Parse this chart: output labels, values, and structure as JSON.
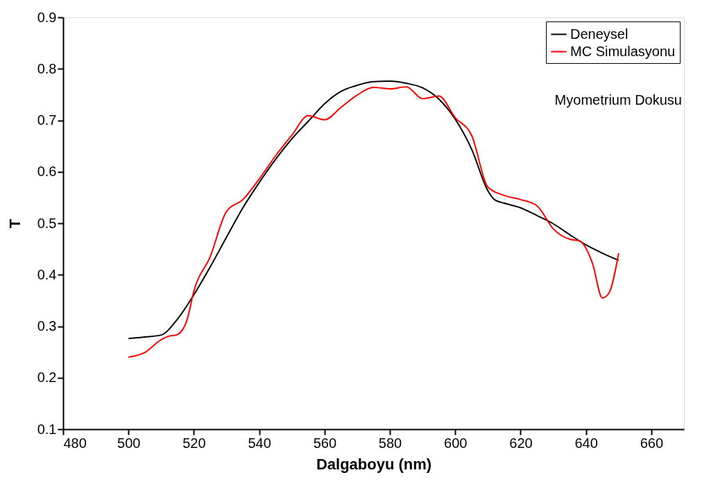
{
  "chart_data": {
    "type": "line",
    "xlabel": "Dalgaboyu (nm)",
    "ylabel": "T",
    "xlim": [
      480,
      670
    ],
    "ylim": [
      0.1,
      0.9
    ],
    "xticks": [
      480,
      500,
      520,
      540,
      560,
      580,
      600,
      620,
      640,
      660
    ],
    "yticks": [
      {
        "value": 0.1,
        "label": "0.1"
      },
      {
        "value": 0.2,
        "label": "0.2"
      },
      {
        "value": 0.3,
        "label": "0.3"
      },
      {
        "value": 0.4,
        "label": "0.4"
      },
      {
        "value": 0.5,
        "label": "0.5"
      },
      {
        "value": 0.6,
        "label": "0.6"
      },
      {
        "value": 0.7,
        "label": "0.7"
      },
      {
        "value": 0.8,
        "label": "0.8"
      },
      {
        "value": 0.9,
        "label": "0.9"
      }
    ],
    "grid": false,
    "legend": "top right",
    "marker": "none",
    "line_style": "solid",
    "annotations": [
      "Myometrium Dokusu"
    ],
    "series": [
      {
        "name": "Deneysel",
        "color": "#000000",
        "x": [
          500,
          505,
          510,
          515,
          520,
          525,
          530,
          535,
          540,
          545,
          550,
          555,
          560,
          565,
          570,
          575,
          580,
          585,
          590,
          595,
          600,
          605,
          610,
          612,
          615,
          620,
          625,
          630,
          635,
          640,
          645,
          650
        ],
        "values": [
          0.276,
          0.279,
          0.283,
          0.314,
          0.361,
          0.415,
          0.473,
          0.53,
          0.579,
          0.624,
          0.664,
          0.698,
          0.732,
          0.756,
          0.768,
          0.775,
          0.776,
          0.772,
          0.763,
          0.741,
          0.702,
          0.644,
          0.563,
          0.546,
          0.539,
          0.53,
          0.515,
          0.499,
          0.478,
          0.458,
          0.442,
          0.428
        ]
      },
      {
        "name": "MC Simulasyonu",
        "color": "#ff0000",
        "x": [
          500,
          505,
          510,
          512,
          515,
          518,
          520,
          525,
          530,
          535,
          540,
          545,
          550,
          555,
          560,
          565,
          570,
          575,
          580,
          585,
          590,
          595,
          600,
          605,
          610,
          615,
          620,
          625,
          630,
          635,
          638,
          642,
          645,
          647,
          650
        ],
        "values": [
          0.24,
          0.249,
          0.274,
          0.28,
          0.284,
          0.314,
          0.368,
          0.435,
          0.523,
          0.546,
          0.586,
          0.631,
          0.671,
          0.709,
          0.701,
          0.725,
          0.749,
          0.764,
          0.761,
          0.765,
          0.742,
          0.747,
          0.705,
          0.671,
          0.57,
          0.554,
          0.546,
          0.534,
          0.489,
          0.469,
          0.466,
          0.422,
          0.355,
          0.364,
          0.442
        ]
      }
    ]
  }
}
